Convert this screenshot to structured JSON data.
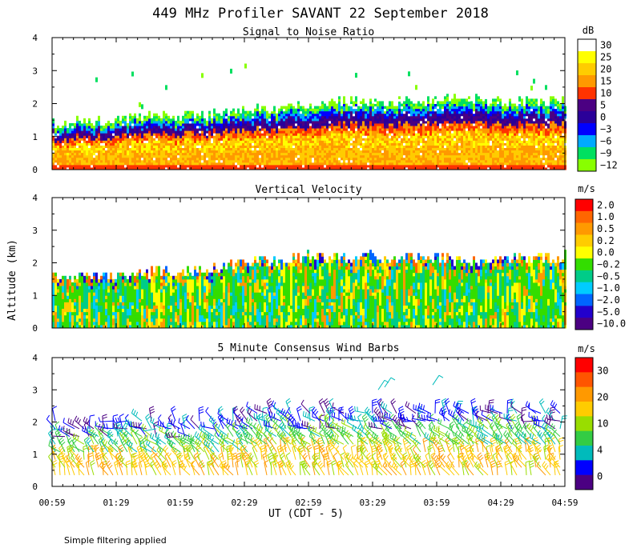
{
  "figure": {
    "title": "449 MHz Profiler SAVANT 22 September 2018",
    "ylabel": "Altitude (km)",
    "xlabel": "UT  (CDT - 5)",
    "footnote": "Simple filtering applied",
    "time_ticks": [
      "00:59",
      "01:29",
      "01:59",
      "02:29",
      "02:59",
      "03:29",
      "03:59",
      "04:29",
      "04:59"
    ]
  },
  "chart_data": [
    {
      "type": "heatmap",
      "title": "Signal to Noise Ratio",
      "xlabel": "UT  (CDT - 5)",
      "ylabel": "Altitude (km)",
      "ylim": [
        0,
        4
      ],
      "yticks": [
        0,
        1,
        2,
        3,
        4
      ],
      "colorbar_unit": "dB",
      "colorbar_labels": [
        "30",
        "25",
        "20",
        "15",
        "10",
        "5",
        "0",
        "−3",
        "−6",
        "−9",
        "−12"
      ],
      "colorbar_colors": [
        "#ffffff",
        "#ffff00",
        "#ffcc00",
        "#ff9900",
        "#ff3300",
        "#4b0082",
        "#2a0099",
        "#0000ff",
        "#00aaff",
        "#00e060",
        "#88ff00"
      ],
      "top_of_echo_km": [
        1.35,
        1.45,
        1.45,
        1.55,
        1.55,
        1.65,
        1.75,
        1.8,
        1.95,
        2.0,
        2.0,
        2.05,
        2.1,
        2.05,
        2.05,
        2.0,
        2.0
      ]
    },
    {
      "type": "heatmap",
      "title": "Vertical Velocity",
      "xlabel": "UT  (CDT - 5)",
      "ylabel": "Altitude (km)",
      "ylim": [
        0,
        4
      ],
      "yticks": [
        0,
        1,
        2,
        3,
        4
      ],
      "colorbar_unit": "m/s",
      "colorbar_labels": [
        "2.0",
        "1.0",
        "0.5",
        "0.2",
        "0.0",
        "−0.2",
        "−0.5",
        "−1.0",
        "−2.0",
        "−5.0",
        "−10.0"
      ],
      "colorbar_colors": [
        "#ff0000",
        "#ff6600",
        "#ff9900",
        "#ffcc00",
        "#ffff00",
        "#33dd00",
        "#00cc88",
        "#00ccff",
        "#0066ff",
        "#2200cc",
        "#4b0082"
      ],
      "top_of_echo_km": [
        1.5,
        1.55,
        1.6,
        1.7,
        1.75,
        1.85,
        2.0,
        2.1,
        2.2,
        2.2,
        2.2,
        2.2,
        2.15,
        2.1,
        2.1,
        2.15,
        2.2
      ]
    },
    {
      "type": "scatter",
      "title": "5 Minute Consensus Wind Barbs",
      "xlabel": "UT  (CDT - 5)",
      "ylabel": "Altitude (km)",
      "ylim": [
        0,
        4
      ],
      "yticks": [
        0,
        1,
        2,
        3,
        4
      ],
      "colorbar_unit": "m/s",
      "colorbar_labels": [
        "30",
        "20",
        "10",
        "4",
        "0"
      ],
      "colorbar_colors": [
        "#ff0000",
        "#ff5500",
        "#ff9900",
        "#ffcc00",
        "#99dd00",
        "#33cc44",
        "#00bbbb",
        "#0000ff",
        "#4b0082"
      ]
    }
  ]
}
